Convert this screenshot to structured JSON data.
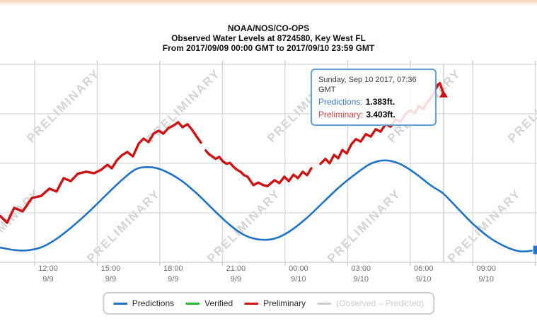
{
  "title": {
    "line1": "NOAA/NOS/CO-OPS",
    "line2": "Observed Water Levels at 8724580, Key West FL",
    "line3": "From 2017/09/09 00:00 GMT to 2017/09/10 23:59 GMT"
  },
  "watermark": {
    "text": "PRELIMINARY"
  },
  "tooltip": {
    "date": "Sunday, Sep 10 2017, 07:36 GMT",
    "rows": [
      {
        "label": "Predictions:",
        "value": "1.383ft.",
        "color": "#3f7ed0"
      },
      {
        "label": "Preliminary:",
        "value": "3.403ft.",
        "color": "#cb4540"
      }
    ]
  },
  "legend": {
    "items": [
      {
        "label": "Predictions",
        "color": "#1e73c8",
        "muted": false
      },
      {
        "label": "Verified",
        "color": "#2eb82e",
        "muted": false
      },
      {
        "label": "Preliminary",
        "color": "#cc1414",
        "muted": false
      },
      {
        "label": "(Observed – Predicted)",
        "color": "#cccccc",
        "muted": true
      }
    ]
  },
  "axis": {
    "x_labels": [
      {
        "time": "12:00",
        "date": "9/9"
      },
      {
        "time": "15:00",
        "date": "9/9"
      },
      {
        "time": "18:00",
        "date": "9/9"
      },
      {
        "time": "21:00",
        "date": "9/9"
      },
      {
        "time": "00:00",
        "date": "9/10"
      },
      {
        "time": "03:00",
        "date": "9/10"
      },
      {
        "time": "06:00",
        "date": "9/10"
      },
      {
        "time": "09:00",
        "date": "9/10"
      }
    ]
  },
  "chart_data": {
    "type": "line",
    "title": "Observed Water Levels at 8724580, Key West FL",
    "x_unit": "hours since 2017/09/09 00:00 GMT",
    "y_unit": "ft",
    "x_range": [
      10.34,
      36.08
    ],
    "y_range": [
      0,
      4
    ],
    "x_ticks": [
      12,
      15,
      18,
      21,
      24,
      27,
      30,
      33,
      36
    ],
    "y_gridlines": [
      1,
      2,
      3,
      4
    ],
    "grid": true,
    "crosshair_x": 31.6,
    "legend_position": "bottom",
    "series": [
      {
        "name": "Predictions",
        "color": "#1e73c8",
        "width": 2.6,
        "smooth": true,
        "end_marker": "square",
        "segments": [
          [
            [
              10.34,
              0.3
            ],
            [
              11.0,
              0.25
            ],
            [
              11.6,
              0.24
            ],
            [
              12.3,
              0.3
            ],
            [
              13.0,
              0.46
            ],
            [
              13.8,
              0.72
            ],
            [
              14.6,
              1.02
            ],
            [
              15.4,
              1.35
            ],
            [
              16.2,
              1.67
            ],
            [
              16.9,
              1.89
            ],
            [
              17.6,
              1.92
            ],
            [
              18.2,
              1.85
            ],
            [
              19.0,
              1.66
            ],
            [
              19.8,
              1.38
            ],
            [
              20.6,
              1.05
            ],
            [
              21.4,
              0.74
            ],
            [
              22.1,
              0.54
            ],
            [
              22.8,
              0.46
            ],
            [
              23.5,
              0.48
            ],
            [
              24.2,
              0.62
            ],
            [
              25.0,
              0.88
            ],
            [
              25.8,
              1.2
            ],
            [
              26.6,
              1.52
            ],
            [
              27.4,
              1.79
            ],
            [
              28.1,
              1.99
            ],
            [
              28.8,
              2.06
            ],
            [
              29.5,
              1.99
            ],
            [
              30.2,
              1.81
            ],
            [
              31.0,
              1.55
            ],
            [
              31.6,
              1.383
            ],
            [
              32.3,
              1.08
            ],
            [
              33.0,
              0.78
            ],
            [
              33.8,
              0.5
            ],
            [
              34.6,
              0.31
            ],
            [
              35.3,
              0.22
            ],
            [
              36.1,
              0.25
            ]
          ]
        ]
      },
      {
        "name": "Verified",
        "color": "#2eb82e",
        "width": 2.6,
        "smooth": false,
        "end_marker": "none",
        "segments": []
      },
      {
        "name": "Preliminary",
        "color": "#cc1414",
        "width": 3.4,
        "smooth": false,
        "end_marker": "triangle",
        "segments": [
          [
            [
              10.34,
              0.94
            ],
            [
              10.68,
              0.8
            ],
            [
              11.02,
              1.1
            ],
            [
              11.43,
              1.03
            ],
            [
              11.87,
              1.3
            ],
            [
              12.31,
              1.34
            ],
            [
              12.71,
              1.49
            ],
            [
              13.05,
              1.43
            ],
            [
              13.39,
              1.7
            ],
            [
              13.73,
              1.64
            ],
            [
              14.07,
              1.79
            ],
            [
              14.48,
              1.83
            ],
            [
              14.85,
              1.8
            ],
            [
              15.19,
              1.87
            ],
            [
              15.49,
              1.97
            ],
            [
              15.7,
              1.9
            ],
            [
              15.94,
              2.06
            ],
            [
              16.17,
              2.16
            ],
            [
              16.44,
              2.23
            ],
            [
              16.71,
              2.14
            ],
            [
              16.99,
              2.4
            ],
            [
              17.22,
              2.5
            ],
            [
              17.46,
              2.43
            ],
            [
              17.7,
              2.6
            ],
            [
              17.94,
              2.66
            ],
            [
              18.17,
              2.6
            ],
            [
              18.41,
              2.71
            ],
            [
              18.68,
              2.77
            ],
            [
              18.88,
              2.83
            ],
            [
              19.09,
              2.73
            ],
            [
              19.33,
              2.79
            ],
            [
              19.56,
              2.67
            ],
            [
              19.83,
              2.5
            ],
            [
              19.97,
              2.42
            ]
          ],
          [
            [
              20.2,
              2.26
            ],
            [
              20.34,
              2.19
            ],
            [
              20.68,
              2.09
            ],
            [
              20.85,
              2.13
            ],
            [
              21.02,
              2.04
            ],
            [
              21.19,
              1.99
            ],
            [
              21.36,
              2.01
            ],
            [
              21.53,
              1.93
            ],
            [
              21.7,
              1.87
            ],
            [
              21.87,
              1.83
            ],
            [
              22.04,
              1.76
            ],
            [
              22.21,
              1.73
            ],
            [
              22.48,
              1.56
            ],
            [
              22.72,
              1.61
            ],
            [
              22.95,
              1.56
            ],
            [
              23.16,
              1.54
            ],
            [
              23.5,
              1.66
            ],
            [
              23.73,
              1.6
            ],
            [
              23.97,
              1.73
            ],
            [
              24.18,
              1.64
            ],
            [
              24.41,
              1.77
            ],
            [
              24.62,
              1.7
            ],
            [
              24.85,
              1.83
            ],
            [
              25.06,
              1.76
            ],
            [
              25.26,
              1.9
            ]
          ],
          [
            [
              25.7,
              1.99
            ],
            [
              25.94,
              2.09
            ],
            [
              26.14,
              2.0
            ],
            [
              26.35,
              2.17
            ],
            [
              26.55,
              2.1
            ],
            [
              26.75,
              2.27
            ],
            [
              26.96,
              2.2
            ],
            [
              27.19,
              2.39
            ],
            [
              27.4,
              2.49
            ],
            [
              27.63,
              2.44
            ],
            [
              27.87,
              2.59
            ],
            [
              28.11,
              2.54
            ],
            [
              28.35,
              2.69
            ],
            [
              28.58,
              2.64
            ],
            [
              28.82,
              2.79
            ],
            [
              29.06,
              2.74
            ],
            [
              29.29,
              2.89
            ],
            [
              29.53,
              2.84
            ],
            [
              29.77,
              2.99
            ],
            [
              30.01,
              3.07
            ],
            [
              30.21,
              3.01
            ],
            [
              30.41,
              3.16
            ],
            [
              30.62,
              3.1
            ],
            [
              30.82,
              3.24
            ],
            [
              31.02,
              3.33
            ],
            [
              31.19,
              3.47
            ],
            [
              31.33,
              3.59
            ],
            [
              31.43,
              3.62
            ],
            [
              31.52,
              3.5
            ],
            [
              31.6,
              3.403
            ]
          ]
        ]
      },
      {
        "name": "(Observed – Predicted)",
        "color": "#cccccc",
        "width": 2,
        "smooth": false,
        "end_marker": "none",
        "segments": []
      }
    ]
  }
}
